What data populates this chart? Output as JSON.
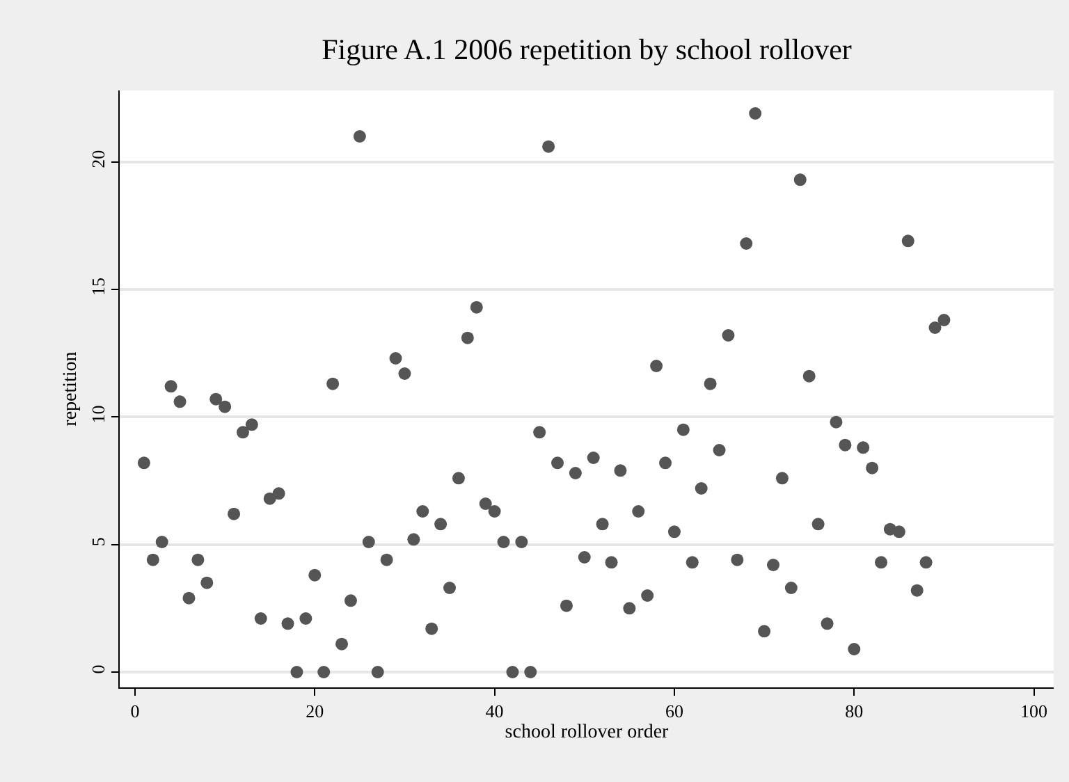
{
  "chart_data": {
    "type": "scatter",
    "title": "Figure A.1 2006 repetition by school rollover",
    "xlabel": "school rollover order",
    "ylabel": "repetition",
    "x": [
      1,
      2,
      3,
      4,
      5,
      6,
      7,
      8,
      9,
      10,
      11,
      12,
      13,
      14,
      15,
      16,
      17,
      18,
      19,
      20,
      21,
      22,
      23,
      24,
      25,
      26,
      27,
      28,
      29,
      30,
      31,
      32,
      33,
      34,
      35,
      36,
      37,
      38,
      39,
      40,
      41,
      42,
      43,
      44,
      45,
      46,
      47,
      48,
      49,
      50,
      51,
      52,
      53,
      54,
      55,
      56,
      57,
      58,
      59,
      60,
      61,
      62,
      63,
      64,
      65,
      66,
      67,
      68,
      69,
      70,
      71,
      72,
      73,
      74,
      75,
      76,
      77,
      78,
      79,
      80,
      81,
      82,
      83,
      84,
      85,
      86,
      87,
      88,
      89,
      90
    ],
    "series": [
      {
        "color": "#555555",
        "values": [
          8.2,
          4.4,
          5.1,
          11.2,
          10.6,
          2.9,
          4.4,
          3.5,
          10.7,
          10.4,
          6.2,
          9.4,
          9.7,
          2.1,
          6.8,
          7.0,
          1.9,
          0,
          2.1,
          3.8,
          0,
          11.3,
          1.1,
          2.8,
          21.0,
          5.1,
          0,
          4.4,
          12.3,
          11.7,
          5.2,
          6.3,
          1.7,
          5.8,
          3.3,
          7.6,
          13.1,
          14.3,
          6.6,
          6.3,
          5.1,
          0,
          5.1,
          0,
          9.4,
          20.6,
          8.2,
          2.6,
          7.8,
          4.5,
          8.4,
          5.8,
          4.3,
          7.9,
          2.5,
          6.3,
          3.0,
          12.0,
          8.2,
          5.5,
          9.5,
          4.3,
          7.2,
          11.3,
          8.7,
          13.2,
          4.4,
          16.8,
          21.9,
          1.6,
          4.2,
          7.6,
          3.3,
          19.3,
          11.6,
          5.8,
          1.9,
          9.8,
          8.9,
          0.9,
          8.8,
          8.0,
          4.3,
          5.6,
          5.5,
          16.9,
          3.2,
          4.3,
          13.5,
          13.8
        ]
      }
    ],
    "xlim": [
      -1.7,
      102.2
    ],
    "ylim": [
      -0.6,
      22.8
    ],
    "xticks": [
      0,
      20,
      40,
      60,
      80,
      100
    ],
    "yticks": [
      0,
      5,
      10,
      15,
      20
    ],
    "grid": "y",
    "marker": "circle"
  }
}
